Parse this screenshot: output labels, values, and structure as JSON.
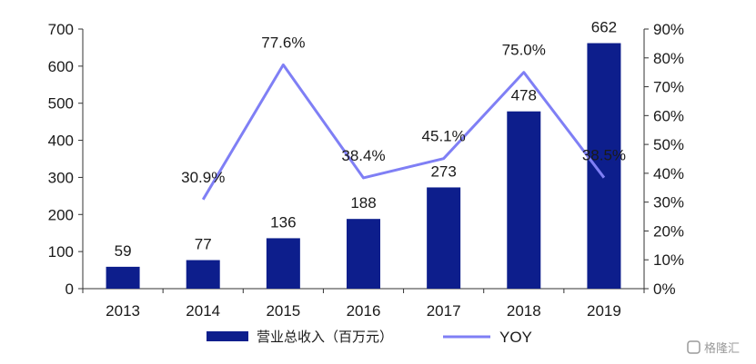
{
  "chart_data": {
    "type": "bar",
    "categories": [
      "2013",
      "2014",
      "2015",
      "2016",
      "2017",
      "2018",
      "2019"
    ],
    "series": [
      {
        "name": "营业总收入（百万元）",
        "type": "bar",
        "axis": "left",
        "values": [
          59,
          77,
          136,
          188,
          273,
          478,
          662
        ],
        "labels": [
          "59",
          "77",
          "136",
          "188",
          "273",
          "478",
          "662"
        ],
        "color": "#0d1e8c"
      },
      {
        "name": "YOY",
        "type": "line",
        "axis": "right",
        "values": [
          null,
          30.9,
          77.6,
          38.4,
          45.1,
          75.0,
          38.5
        ],
        "labels": [
          "",
          "30.9%",
          "77.6%",
          "38.4%",
          "45.1%",
          "75.0%",
          "38.5%"
        ],
        "color": "#7f7ff5"
      }
    ],
    "y_left": {
      "lim": [
        0,
        700
      ],
      "ticks": [
        0,
        100,
        200,
        300,
        400,
        500,
        600,
        700
      ],
      "tick_labels": [
        "0",
        "100",
        "200",
        "300",
        "400",
        "500",
        "600",
        "700"
      ]
    },
    "y_right": {
      "lim": [
        0,
        90
      ],
      "ticks": [
        0,
        10,
        20,
        30,
        40,
        50,
        60,
        70,
        80,
        90
      ],
      "tick_labels": [
        "0%",
        "10%",
        "20%",
        "30%",
        "40%",
        "50%",
        "60%",
        "70%",
        "80%",
        "90%"
      ]
    },
    "grid": false,
    "legend": "bottom-center"
  },
  "watermark": "格隆汇"
}
